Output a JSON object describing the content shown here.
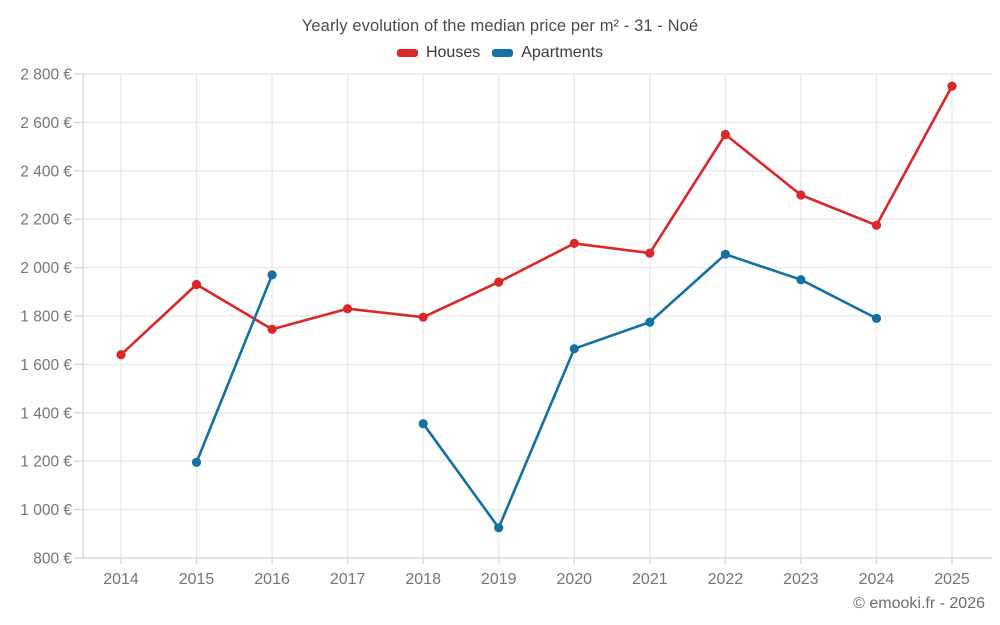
{
  "header": {
    "title": "Yearly evolution of the median price per m² - 31 - Noé"
  },
  "footer": {
    "credit": "© emooki.fr - 2026"
  },
  "chart_data": {
    "type": "line",
    "title": "Yearly evolution of the median price per m² - 31 - Noé",
    "categories": [
      "2014",
      "2015",
      "2016",
      "2017",
      "2018",
      "2019",
      "2020",
      "2021",
      "2022",
      "2023",
      "2024",
      "2025"
    ],
    "series": [
      {
        "name": "Houses",
        "color": "#db2727",
        "values": [
          1640,
          1930,
          1745,
          1830,
          1795,
          1940,
          2100,
          2060,
          2550,
          2300,
          2175,
          2750
        ]
      },
      {
        "name": "Apartments",
        "color": "#1371a3",
        "values": [
          null,
          1195,
          1970,
          null,
          1355,
          925,
          1665,
          1775,
          2055,
          1950,
          1790,
          null
        ]
      }
    ],
    "xlabel": "",
    "ylabel": "",
    "ylim": [
      800,
      2800
    ],
    "ytick_step": 200,
    "ytick_suffix": " €",
    "grid": true,
    "legend_position": "top",
    "colors": {
      "grid_line": "#e8e8e8",
      "axis_line": "#d6d6d6",
      "tick_label": "#757575",
      "title_text": "#4a4a4a",
      "credit_text": "#6d6d6d"
    }
  }
}
